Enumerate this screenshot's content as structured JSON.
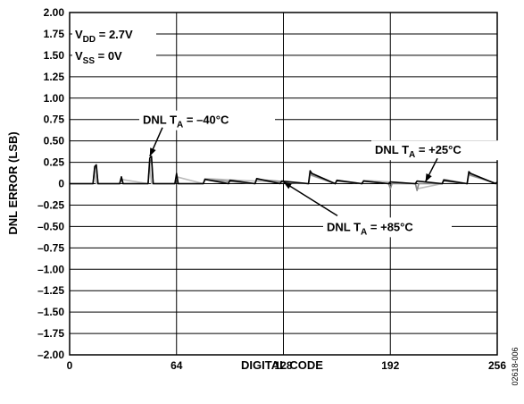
{
  "chart_data": {
    "type": "line",
    "xlabel": "DIGITAL CODE",
    "ylabel": "DNL ERROR (LSB)",
    "xlim": [
      0,
      256
    ],
    "ylim": [
      -2.0,
      2.0
    ],
    "x_ticks": [
      0,
      64,
      128,
      192,
      256
    ],
    "x_tick_labels": [
      "0",
      "64",
      "128",
      "192",
      "256"
    ],
    "y_ticks": [
      2.0,
      1.75,
      1.5,
      1.25,
      1.0,
      0.75,
      0.5,
      0.25,
      0,
      -0.25,
      -0.5,
      -0.75,
      -1.0,
      -1.25,
      -1.5,
      -1.75,
      -2.0
    ],
    "y_tick_labels": [
      "2.00",
      "1.75",
      "1.50",
      "1.25",
      "1.00",
      "0.75",
      "0.50",
      "0.25",
      "0",
      "–0.25",
      "–0.50",
      "–0.75",
      "–1.00",
      "–1.25",
      "–1.50",
      "–1.75",
      "–2.00"
    ],
    "grid": true,
    "conditions": [
      {
        "base": "V",
        "sub": "DD",
        "rest": " = 2.7V"
      },
      {
        "base": "V",
        "sub": "SS",
        "rest": " = 0V"
      }
    ],
    "series": [
      {
        "label": {
          "base": "DNL T",
          "sub": "A",
          "rest": " = –40°C"
        },
        "color": "#000000",
        "x": [
          0,
          14,
          15,
          16,
          17,
          30,
          31,
          32,
          47,
          48,
          49,
          50,
          63,
          64,
          65,
          80,
          81,
          95,
          96,
          111,
          112,
          126,
          127,
          143,
          144,
          145,
          159,
          160,
          175,
          176,
          191,
          192,
          207,
          208,
          223,
          224,
          238,
          239,
          240,
          255,
          256
        ],
        "y": [
          0,
          0,
          0.2,
          0.22,
          0,
          0,
          0.08,
          0,
          0,
          0.3,
          0.32,
          0,
          0,
          0.12,
          0,
          0,
          0.05,
          0,
          0.04,
          0,
          0.06,
          0,
          0.03,
          0,
          0.15,
          0.12,
          0,
          0.04,
          0,
          0.03,
          0,
          0.02,
          0,
          0.03,
          0,
          0.04,
          0,
          0.14,
          0.12,
          0,
          0.02
        ]
      },
      {
        "label": {
          "base": "DNL T",
          "sub": "A",
          "rest": " = +25°C"
        },
        "color": "#888888",
        "x": [
          0,
          14,
          15,
          16,
          17,
          30,
          31,
          32,
          47,
          48,
          49,
          50,
          63,
          64,
          65,
          80,
          81,
          111,
          112,
          143,
          144,
          145,
          159,
          160,
          175,
          176,
          191,
          192,
          193,
          207,
          208,
          209,
          223,
          224,
          238,
          239,
          240,
          256
        ],
        "y": [
          0,
          0,
          0.18,
          0.2,
          0,
          0,
          0.06,
          0,
          0,
          0.26,
          0.28,
          0,
          0,
          0.1,
          0,
          0,
          0.05,
          0,
          0.05,
          0,
          0.13,
          0.1,
          0,
          0.03,
          0,
          0.03,
          0,
          -0.06,
          0,
          0,
          -0.08,
          0,
          0,
          0.05,
          0,
          0.12,
          0.1,
          0
        ]
      },
      {
        "label": {
          "base": "DNL T",
          "sub": "A",
          "rest": " = +85°C"
        },
        "color": "#bbbbbb",
        "x": [
          0,
          14,
          15,
          16,
          30,
          31,
          47,
          48,
          49,
          63,
          64,
          80,
          81,
          143,
          144,
          159,
          160,
          175,
          176,
          207,
          208,
          223,
          224,
          238,
          239,
          256
        ],
        "y": [
          0,
          0,
          0.15,
          0,
          0,
          0.05,
          0,
          0.22,
          0,
          0,
          0.08,
          0,
          0.06,
          0,
          0.1,
          0,
          0.04,
          0,
          0.04,
          0,
          -0.06,
          0,
          0.03,
          0,
          0.1,
          0
        ]
      }
    ],
    "annotations": [
      {
        "series": 0,
        "target": [
          48,
          0.32
        ]
      },
      {
        "series": 1,
        "target": [
          213,
          0.02
        ]
      },
      {
        "series": 2,
        "target": [
          128,
          0.02
        ]
      }
    ],
    "figure_id": "02618-006"
  }
}
